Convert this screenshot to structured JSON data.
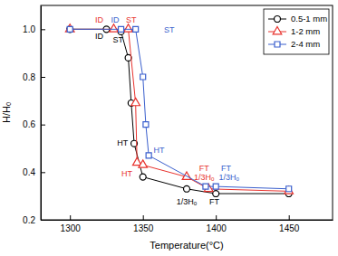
{
  "chart_data": {
    "type": "line",
    "x_label": "Temperature(°C)",
    "y_label": "H/Hₒ",
    "xlim": [
      1280,
      1480
    ],
    "xticks": [
      1300,
      1350,
      1400,
      1450
    ],
    "ylim": [
      0.2,
      1.1
    ],
    "yticks": [
      0.2,
      0.4,
      0.6,
      0.8,
      {
        "value": 1.0,
        "label": "1.0"
      }
    ],
    "legend": "upper right",
    "grid": false,
    "series": [
      {
        "name": "0.5-1 mm",
        "color": "#000000",
        "marker": "circle",
        "line_style": "solid",
        "x": [
          1300,
          1325,
          1335,
          1340,
          1342,
          1344,
          1350,
          1380,
          1400,
          1450
        ],
        "values": [
          1.0,
          1.0,
          0.99,
          0.88,
          0.69,
          0.52,
          0.38,
          0.33,
          0.31,
          0.31
        ]
      },
      {
        "name": "1-2 mm",
        "color": "#e8322d",
        "marker": "triangle",
        "line_style": "solid",
        "x": [
          1300,
          1330,
          1340,
          1345,
          1346,
          1350,
          1380,
          1395,
          1450
        ],
        "values": [
          1.0,
          1.0,
          1.0,
          0.69,
          0.44,
          0.43,
          0.38,
          0.33,
          0.32
        ]
      },
      {
        "name": "2-4 mm",
        "color": "#3a5fcd",
        "marker": "square",
        "line_style": "solid",
        "x": [
          1300,
          1335,
          1345,
          1350,
          1352,
          1354,
          1393,
          1400,
          1450
        ],
        "values": [
          1.0,
          1.0,
          1.0,
          0.8,
          0.6,
          0.47,
          0.34,
          0.34,
          0.33
        ]
      }
    ],
    "annotations": [
      {
        "text": "ID",
        "x": 1320,
        "y": 0.97,
        "color": "#000000"
      },
      {
        "text": "ST",
        "x": 1333,
        "y": 0.955,
        "color": "#000000"
      },
      {
        "text": "HT",
        "x": 1336,
        "y": 0.52,
        "color": "#000000"
      },
      {
        "text": "1/3Hₒ",
        "x": 1380,
        "y": 0.275,
        "color": "#000000"
      },
      {
        "text": "FT",
        "x": 1399,
        "y": 0.275,
        "color": "#000000"
      },
      {
        "text": "ID",
        "x": 1320,
        "y": 1.035,
        "color": "#e8322d"
      },
      {
        "text": "ST",
        "x": 1342,
        "y": 1.035,
        "color": "#e8322d"
      },
      {
        "text": "HT",
        "x": 1339,
        "y": 0.39,
        "color": "#e8322d"
      },
      {
        "text": "FT",
        "x": 1392,
        "y": 0.415,
        "color": "#e8322d"
      },
      {
        "text": "1/3Hₒ",
        "x": 1392,
        "y": 0.375,
        "color": "#e8322d"
      },
      {
        "text": "ID",
        "x": 1331,
        "y": 1.035,
        "color": "#3a5fcd"
      },
      {
        "text": "ST",
        "x": 1368,
        "y": 0.995,
        "color": "#3a5fcd"
      },
      {
        "text": "HT",
        "x": 1361,
        "y": 0.49,
        "color": "#3a5fcd"
      },
      {
        "text": "FT",
        "x": 1407,
        "y": 0.415,
        "color": "#3a5fcd"
      },
      {
        "text": "1/3Hₒ",
        "x": 1409,
        "y": 0.375,
        "color": "#3a5fcd"
      }
    ]
  }
}
